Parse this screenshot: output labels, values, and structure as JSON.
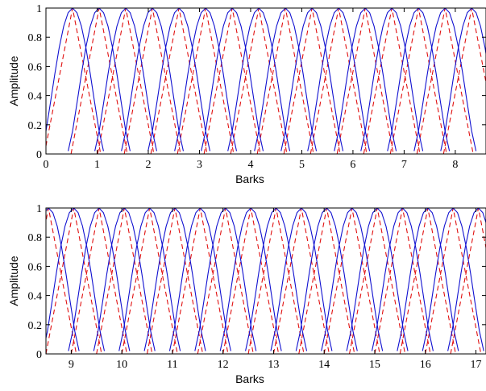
{
  "chart_data": [
    {
      "type": "line",
      "title": "",
      "xlabel": "Barks",
      "ylabel": "Amplitude",
      "xlim": [
        0,
        8.6
      ],
      "ylim": [
        0,
        1
      ],
      "xticks": [
        0,
        1,
        2,
        3,
        4,
        5,
        6,
        7,
        8
      ],
      "yticks": [
        0,
        0.2,
        0.4,
        0.6,
        0.8,
        1
      ],
      "grid": false,
      "legend": "none",
      "series": [
        {
          "style": "dashed",
          "color": "#e01010",
          "shape": "triangular",
          "centers": [
            0.52,
            1.04,
            1.56,
            2.08,
            2.6,
            3.12,
            3.64,
            4.16,
            4.68,
            5.2,
            5.72,
            6.24,
            6.76,
            7.28,
            7.8,
            8.32
          ],
          "half_width": 0.55
        },
        {
          "style": "solid",
          "color": "#1010d0",
          "shape": "triangular",
          "centers": [
            0.52,
            1.04,
            1.56,
            2.08,
            2.6,
            3.12,
            3.64,
            4.16,
            4.68,
            5.2,
            5.72,
            6.24,
            6.76,
            7.28,
            7.8,
            8.32
          ],
          "half_width": 0.55
        }
      ]
    },
    {
      "type": "line",
      "title": "",
      "xlabel": "Barks",
      "ylabel": "Amplitude",
      "xlim": [
        8.5,
        17.2
      ],
      "ylim": [
        0,
        1
      ],
      "xticks": [
        9,
        10,
        11,
        12,
        13,
        14,
        15,
        16,
        17
      ],
      "yticks": [
        0,
        0.2,
        0.4,
        0.6,
        0.8,
        1
      ],
      "grid": false,
      "legend": "none",
      "series": [
        {
          "style": "dashed",
          "color": "#e01010",
          "shape": "triangular",
          "centers": [
            8.55,
            9.05,
            9.55,
            10.05,
            10.55,
            11.05,
            11.55,
            12.05,
            12.55,
            13.05,
            13.55,
            14.05,
            14.55,
            15.05,
            15.55,
            16.05,
            16.55,
            17.05
          ],
          "half_width": 0.55
        },
        {
          "style": "solid",
          "color": "#1010d0",
          "shape": "triangular",
          "centers": [
            8.55,
            9.05,
            9.55,
            10.05,
            10.55,
            11.05,
            11.55,
            12.05,
            12.55,
            13.05,
            13.55,
            14.05,
            14.55,
            15.05,
            15.55,
            16.05,
            16.55,
            17.05
          ],
          "half_width": 0.55
        }
      ]
    }
  ]
}
